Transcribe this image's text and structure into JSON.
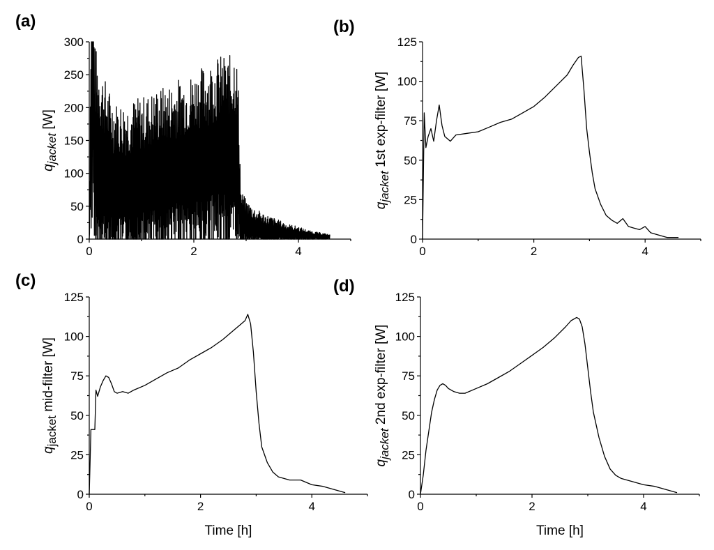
{
  "chart_data": [
    {
      "type": "line",
      "panel": "(a)",
      "ylabel_main": "q",
      "ylabel_sub": "jacket",
      "ylabel_rest": " [W]",
      "xlabel": "",
      "xlim": [
        0,
        5
      ],
      "ylim": [
        0,
        300
      ],
      "xticks": [
        0,
        2,
        4
      ],
      "yticks": [
        0,
        50,
        100,
        150,
        200,
        250,
        300
      ],
      "series": [
        {
          "x": [
            0.0,
            0.05,
            0.1,
            0.2,
            0.3,
            0.4,
            0.5,
            0.7,
            0.9,
            1.1,
            1.3,
            1.5,
            1.7,
            1.9,
            2.1,
            2.3,
            2.5,
            2.7,
            2.8,
            2.85,
            2.9,
            3.0,
            3.2,
            3.4,
            3.6,
            3.8,
            4.0,
            4.2,
            4.4,
            4.6
          ],
          "y": [
            0,
            300,
            120,
            110,
            95,
            85,
            80,
            80,
            85,
            90,
            95,
            100,
            105,
            110,
            115,
            120,
            125,
            120,
            130,
            100,
            30,
            20,
            15,
            12,
            10,
            8,
            7,
            5,
            4,
            3
          ],
          "amplitude": [
            0,
            300,
            180,
            160,
            150,
            140,
            130,
            130,
            130,
            130,
            135,
            135,
            140,
            140,
            145,
            150,
            155,
            160,
            170,
            140,
            45,
            40,
            30,
            25,
            20,
            15,
            12,
            8,
            6,
            4
          ]
        }
      ]
    },
    {
      "type": "line",
      "panel": "(b)",
      "ylabel_main": "q",
      "ylabel_sub": "jacket",
      "ylabel_rest": " 1st exp-filter [W]",
      "xlabel": "",
      "xlim": [
        0,
        5
      ],
      "ylim": [
        0,
        125
      ],
      "xticks": [
        0,
        2,
        4
      ],
      "yticks": [
        0,
        25,
        50,
        75,
        100,
        125
      ],
      "series": [
        {
          "x": [
            0.0,
            0.03,
            0.06,
            0.1,
            0.15,
            0.2,
            0.25,
            0.3,
            0.35,
            0.4,
            0.5,
            0.6,
            0.8,
            1.0,
            1.2,
            1.4,
            1.6,
            1.8,
            2.0,
            2.2,
            2.4,
            2.6,
            2.7,
            2.8,
            2.85,
            2.9,
            2.95,
            3.0,
            3.05,
            3.1,
            3.2,
            3.3,
            3.4,
            3.5,
            3.6,
            3.7,
            3.8,
            3.9,
            4.0,
            4.1,
            4.2,
            4.4,
            4.6
          ],
          "y": [
            0,
            80,
            58,
            65,
            70,
            62,
            75,
            85,
            72,
            65,
            62,
            66,
            67,
            68,
            71,
            74,
            76,
            80,
            84,
            90,
            97,
            104,
            110,
            115,
            116,
            95,
            70,
            55,
            42,
            32,
            22,
            15,
            12,
            10,
            13,
            8,
            7,
            6,
            8,
            4,
            3,
            1,
            1
          ]
        }
      ]
    },
    {
      "type": "line",
      "panel": "(c)",
      "ylabel_main": "q",
      "ylabel_sub": "jacket",
      "ylabel_rest": " mid-filter [W]",
      "xlabel": "Time [h]",
      "xlim": [
        0,
        5
      ],
      "ylim": [
        0,
        125
      ],
      "xticks": [
        0,
        2,
        4
      ],
      "yticks": [
        0,
        25,
        50,
        75,
        100,
        125
      ],
      "series": [
        {
          "x": [
            0.0,
            0.03,
            0.05,
            0.1,
            0.12,
            0.15,
            0.2,
            0.25,
            0.3,
            0.35,
            0.4,
            0.45,
            0.5,
            0.6,
            0.7,
            0.8,
            1.0,
            1.2,
            1.4,
            1.6,
            1.8,
            2.0,
            2.2,
            2.4,
            2.6,
            2.7,
            2.8,
            2.85,
            2.9,
            2.95,
            3.0,
            3.05,
            3.1,
            3.2,
            3.3,
            3.4,
            3.5,
            3.6,
            3.8,
            4.0,
            4.2,
            4.4,
            4.6
          ],
          "y": [
            0,
            41,
            41,
            41,
            66,
            62,
            68,
            72,
            75,
            74,
            70,
            65,
            64,
            65,
            64,
            66,
            69,
            73,
            77,
            80,
            85,
            89,
            93,
            98,
            104,
            107,
            110,
            114,
            108,
            90,
            65,
            45,
            30,
            20,
            14,
            11,
            10,
            9,
            9,
            6,
            5,
            3,
            1
          ]
        }
      ]
    },
    {
      "type": "line",
      "panel": "(d)",
      "ylabel_main": "q",
      "ylabel_sub": "jacket",
      "ylabel_rest": " 2nd exp-filter [W]",
      "xlabel": "Time [h]",
      "xlim": [
        0,
        5
      ],
      "ylim": [
        0,
        125
      ],
      "xticks": [
        0,
        2,
        4
      ],
      "yticks": [
        0,
        25,
        50,
        75,
        100,
        125
      ],
      "series": [
        {
          "x": [
            0.0,
            0.05,
            0.1,
            0.15,
            0.2,
            0.25,
            0.3,
            0.35,
            0.4,
            0.45,
            0.5,
            0.6,
            0.7,
            0.8,
            1.0,
            1.2,
            1.4,
            1.6,
            1.8,
            2.0,
            2.2,
            2.4,
            2.6,
            2.7,
            2.8,
            2.85,
            2.9,
            2.95,
            3.0,
            3.05,
            3.1,
            3.2,
            3.3,
            3.4,
            3.5,
            3.6,
            3.7,
            3.8,
            4.0,
            4.2,
            4.4,
            4.6
          ],
          "y": [
            0,
            12,
            28,
            40,
            52,
            60,
            66,
            69,
            70,
            69,
            67,
            65,
            64,
            64,
            67,
            70,
            74,
            78,
            83,
            88,
            93,
            99,
            106,
            110,
            112,
            111,
            106,
            95,
            80,
            65,
            52,
            36,
            24,
            16,
            12,
            10,
            9,
            8,
            6,
            5,
            3,
            1
          ]
        }
      ]
    }
  ]
}
